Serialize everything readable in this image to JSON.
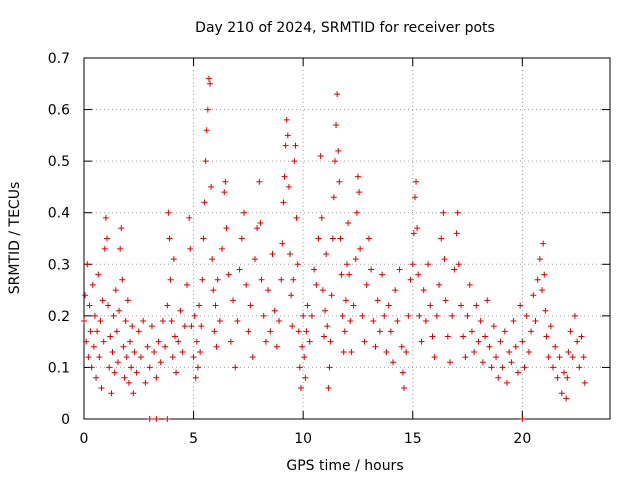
{
  "chart_data": {
    "type": "scatter",
    "title": "Day 210 of 2024, SRMTID for receiver pots",
    "xlabel": "GPS time / hours",
    "ylabel": "SRMTID / TECUs",
    "xlim": [
      0,
      24
    ],
    "ylim": [
      0,
      0.7
    ],
    "grid": true,
    "marker": "plus",
    "x_ticks": [
      0,
      5,
      10,
      15,
      20
    ],
    "x_tick_labels": [
      "0",
      "5",
      "10",
      "15",
      "20"
    ],
    "y_ticks": [
      0,
      0.1,
      0.2,
      0.3,
      0.4,
      0.5,
      0.6,
      0.7
    ],
    "y_tick_labels": [
      "0",
      "0.1",
      "0.2",
      "0.3",
      "0.4",
      "0.5",
      "0.6",
      "0.7"
    ],
    "colors": {
      "series": "#dd0000",
      "grid": "#a0a0a0",
      "axis": "#000000"
    },
    "series": [
      {
        "name": "SRMTID",
        "points": [
          [
            0.0,
            0.19
          ],
          [
            0.05,
            0.24
          ],
          [
            0.1,
            0.15
          ],
          [
            0.15,
            0.3
          ],
          [
            0.2,
            0.12
          ],
          [
            0.25,
            0.22
          ],
          [
            0.3,
            0.17
          ],
          [
            0.35,
            0.1
          ],
          [
            0.4,
            0.26
          ],
          [
            0.45,
            0.14
          ],
          [
            0.5,
            0.2
          ],
          [
            0.55,
            0.08
          ],
          [
            0.6,
            0.17
          ],
          [
            0.65,
            0.28
          ],
          [
            0.7,
            0.12
          ],
          [
            0.75,
            0.19
          ],
          [
            0.8,
            0.06
          ],
          [
            0.85,
            0.23
          ],
          [
            0.9,
            0.15
          ],
          [
            0.95,
            0.33
          ],
          [
            1.0,
            0.39
          ],
          [
            1.05,
            0.35
          ],
          [
            1.1,
            0.22
          ],
          [
            1.15,
            0.1
          ],
          [
            1.2,
            0.16
          ],
          [
            1.25,
            0.05
          ],
          [
            1.3,
            0.13
          ],
          [
            1.35,
            0.2
          ],
          [
            1.4,
            0.09
          ],
          [
            1.45,
            0.25
          ],
          [
            1.5,
            0.17
          ],
          [
            1.55,
            0.11
          ],
          [
            1.6,
            0.21
          ],
          [
            1.65,
            0.33
          ],
          [
            1.7,
            0.37
          ],
          [
            1.75,
            0.27
          ],
          [
            1.8,
            0.14
          ],
          [
            1.85,
            0.08
          ],
          [
            1.9,
            0.19
          ],
          [
            1.95,
            0.12
          ],
          [
            2.0,
            0.23
          ],
          [
            2.05,
            0.07
          ],
          [
            2.1,
            0.15
          ],
          [
            2.15,
            0.1
          ],
          [
            2.2,
            0.18
          ],
          [
            2.25,
            0.05
          ],
          [
            2.3,
            0.13
          ],
          [
            2.4,
            0.09
          ],
          [
            2.5,
            0.17
          ],
          [
            2.6,
            0.12
          ],
          [
            2.7,
            0.19
          ],
          [
            2.8,
            0.07
          ],
          [
            2.9,
            0.14
          ],
          [
            3.0,
            0.1
          ],
          [
            3.1,
            0.18
          ],
          [
            3.2,
            0.13
          ],
          [
            3.3,
            0.08
          ],
          [
            3.4,
            0.15
          ],
          [
            3.5,
            0.11
          ],
          [
            3.6,
            0.19
          ],
          [
            3.7,
            0.14
          ],
          [
            3.8,
            0.22
          ],
          [
            3.85,
            0.4
          ],
          [
            3.9,
            0.35
          ],
          [
            3.95,
            0.27
          ],
          [
            4.0,
            0.19
          ],
          [
            4.05,
            0.12
          ],
          [
            4.1,
            0.31
          ],
          [
            4.15,
            0.16
          ],
          [
            4.2,
            0.09
          ],
          [
            4.3,
            0.15
          ],
          [
            4.4,
            0.21
          ],
          [
            4.5,
            0.13
          ],
          [
            4.6,
            0.18
          ],
          [
            4.7,
            0.26
          ],
          [
            4.8,
            0.39
          ],
          [
            4.85,
            0.33
          ],
          [
            4.9,
            0.18
          ],
          [
            5.0,
            0.12
          ],
          [
            5.05,
            0.2
          ],
          [
            5.1,
            0.08
          ],
          [
            5.15,
            0.15
          ],
          [
            5.2,
            0.1
          ],
          [
            5.25,
            0.22
          ],
          [
            5.3,
            0.13
          ],
          [
            5.35,
            0.18
          ],
          [
            5.4,
            0.27
          ],
          [
            5.45,
            0.35
          ],
          [
            5.5,
            0.42
          ],
          [
            5.55,
            0.5
          ],
          [
            5.6,
            0.56
          ],
          [
            5.65,
            0.6
          ],
          [
            5.7,
            0.66
          ],
          [
            5.75,
            0.65
          ],
          [
            5.8,
            0.45
          ],
          [
            5.85,
            0.31
          ],
          [
            5.9,
            0.25
          ],
          [
            5.95,
            0.17
          ],
          [
            6.0,
            0.22
          ],
          [
            6.05,
            0.14
          ],
          [
            6.1,
            0.27
          ],
          [
            6.2,
            0.19
          ],
          [
            6.3,
            0.33
          ],
          [
            6.4,
            0.44
          ],
          [
            6.45,
            0.46
          ],
          [
            6.5,
            0.37
          ],
          [
            6.6,
            0.28
          ],
          [
            6.7,
            0.15
          ],
          [
            6.8,
            0.23
          ],
          [
            6.9,
            0.1
          ],
          [
            7.0,
            0.19
          ],
          [
            7.1,
            0.29
          ],
          [
            7.2,
            0.35
          ],
          [
            7.3,
            0.4
          ],
          [
            7.4,
            0.26
          ],
          [
            7.5,
            0.17
          ],
          [
            7.6,
            0.22
          ],
          [
            7.7,
            0.12
          ],
          [
            7.8,
            0.31
          ],
          [
            7.9,
            0.37
          ],
          [
            8.0,
            0.46
          ],
          [
            8.05,
            0.38
          ],
          [
            8.1,
            0.27
          ],
          [
            8.2,
            0.2
          ],
          [
            8.3,
            0.15
          ],
          [
            8.4,
            0.25
          ],
          [
            8.5,
            0.17
          ],
          [
            8.6,
            0.32
          ],
          [
            8.7,
            0.21
          ],
          [
            8.8,
            0.14
          ],
          [
            8.9,
            0.19
          ],
          [
            9.0,
            0.27
          ],
          [
            9.05,
            0.34
          ],
          [
            9.1,
            0.42
          ],
          [
            9.15,
            0.47
          ],
          [
            9.2,
            0.53
          ],
          [
            9.25,
            0.58
          ],
          [
            9.3,
            0.55
          ],
          [
            9.35,
            0.45
          ],
          [
            9.4,
            0.32
          ],
          [
            9.45,
            0.24
          ],
          [
            9.5,
            0.18
          ],
          [
            9.55,
            0.27
          ],
          [
            9.6,
            0.5
          ],
          [
            9.65,
            0.53
          ],
          [
            9.7,
            0.39
          ],
          [
            9.75,
            0.3
          ],
          [
            9.8,
            0.17
          ],
          [
            9.85,
            0.1
          ],
          [
            9.9,
            0.06
          ],
          [
            9.95,
            0.14
          ],
          [
            10.0,
            0.2
          ],
          [
            10.05,
            0.12
          ],
          [
            10.1,
            0.08
          ],
          [
            10.15,
            0.17
          ],
          [
            10.2,
            0.22
          ],
          [
            10.3,
            0.15
          ],
          [
            10.4,
            0.2
          ],
          [
            10.5,
            0.29
          ],
          [
            10.6,
            0.26
          ],
          [
            10.7,
            0.35
          ],
          [
            10.8,
            0.51
          ],
          [
            10.85,
            0.39
          ],
          [
            10.9,
            0.25
          ],
          [
            10.95,
            0.16
          ],
          [
            11.0,
            0.21
          ],
          [
            11.05,
            0.32
          ],
          [
            11.1,
            0.18
          ],
          [
            11.15,
            0.06
          ],
          [
            11.2,
            0.1
          ],
          [
            11.25,
            0.15
          ],
          [
            11.3,
            0.24
          ],
          [
            11.35,
            0.35
          ],
          [
            11.4,
            0.43
          ],
          [
            11.45,
            0.5
          ],
          [
            11.5,
            0.57
          ],
          [
            11.55,
            0.63
          ],
          [
            11.6,
            0.52
          ],
          [
            11.65,
            0.46
          ],
          [
            11.7,
            0.35
          ],
          [
            11.75,
            0.28
          ],
          [
            11.8,
            0.2
          ],
          [
            11.85,
            0.13
          ],
          [
            11.9,
            0.17
          ],
          [
            11.95,
            0.23
          ],
          [
            12.0,
            0.3
          ],
          [
            12.05,
            0.38
          ],
          [
            12.1,
            0.28
          ],
          [
            12.15,
            0.19
          ],
          [
            12.2,
            0.13
          ],
          [
            12.3,
            0.22
          ],
          [
            12.4,
            0.31
          ],
          [
            12.45,
            0.4
          ],
          [
            12.5,
            0.47
          ],
          [
            12.55,
            0.44
          ],
          [
            12.6,
            0.33
          ],
          [
            12.7,
            0.2
          ],
          [
            12.8,
            0.15
          ],
          [
            12.9,
            0.26
          ],
          [
            13.0,
            0.35
          ],
          [
            13.1,
            0.29
          ],
          [
            13.2,
            0.19
          ],
          [
            13.3,
            0.14
          ],
          [
            13.4,
            0.23
          ],
          [
            13.5,
            0.17
          ],
          [
            13.6,
            0.28
          ],
          [
            13.7,
            0.2
          ],
          [
            13.8,
            0.13
          ],
          [
            13.9,
            0.22
          ],
          [
            14.0,
            0.17
          ],
          [
            14.1,
            0.11
          ],
          [
            14.2,
            0.25
          ],
          [
            14.3,
            0.19
          ],
          [
            14.4,
            0.29
          ],
          [
            14.5,
            0.14
          ],
          [
            14.55,
            0.09
          ],
          [
            14.6,
            0.06
          ],
          [
            14.7,
            0.13
          ],
          [
            14.8,
            0.2
          ],
          [
            14.9,
            0.27
          ],
          [
            15.0,
            0.3
          ],
          [
            15.05,
            0.36
          ],
          [
            15.1,
            0.43
          ],
          [
            15.15,
            0.46
          ],
          [
            15.2,
            0.37
          ],
          [
            15.25,
            0.28
          ],
          [
            15.3,
            0.2
          ],
          [
            15.4,
            0.15
          ],
          [
            15.5,
            0.25
          ],
          [
            15.6,
            0.19
          ],
          [
            15.7,
            0.3
          ],
          [
            15.8,
            0.22
          ],
          [
            15.9,
            0.16
          ],
          [
            16.0,
            0.12
          ],
          [
            16.1,
            0.2
          ],
          [
            16.2,
            0.26
          ],
          [
            16.3,
            0.35
          ],
          [
            16.4,
            0.4
          ],
          [
            16.45,
            0.31
          ],
          [
            16.5,
            0.23
          ],
          [
            16.6,
            0.16
          ],
          [
            16.7,
            0.11
          ],
          [
            16.8,
            0.2
          ],
          [
            16.9,
            0.29
          ],
          [
            17.0,
            0.36
          ],
          [
            17.05,
            0.4
          ],
          [
            17.1,
            0.3
          ],
          [
            17.2,
            0.22
          ],
          [
            17.3,
            0.16
          ],
          [
            17.4,
            0.12
          ],
          [
            17.5,
            0.2
          ],
          [
            17.6,
            0.26
          ],
          [
            17.7,
            0.17
          ],
          [
            17.8,
            0.13
          ],
          [
            17.9,
            0.22
          ],
          [
            18.0,
            0.15
          ],
          [
            18.1,
            0.19
          ],
          [
            18.2,
            0.11
          ],
          [
            18.3,
            0.16
          ],
          [
            18.4,
            0.23
          ],
          [
            18.5,
            0.14
          ],
          [
            18.6,
            0.1
          ],
          [
            18.7,
            0.18
          ],
          [
            18.8,
            0.12
          ],
          [
            18.9,
            0.08
          ],
          [
            19.0,
            0.15
          ],
          [
            19.1,
            0.1
          ],
          [
            19.2,
            0.17
          ],
          [
            19.3,
            0.07
          ],
          [
            19.4,
            0.13
          ],
          [
            19.5,
            0.11
          ],
          [
            19.6,
            0.19
          ],
          [
            19.7,
            0.14
          ],
          [
            19.8,
            0.09
          ],
          [
            19.9,
            0.22
          ],
          [
            20.0,
            0.15
          ],
          [
            20.1,
            0.1
          ],
          [
            20.2,
            0.2
          ],
          [
            20.3,
            0.13
          ],
          [
            20.4,
            0.17
          ],
          [
            20.5,
            0.24
          ],
          [
            20.6,
            0.19
          ],
          [
            20.7,
            0.27
          ],
          [
            20.8,
            0.31
          ],
          [
            20.9,
            0.25
          ],
          [
            20.95,
            0.34
          ],
          [
            21.0,
            0.28
          ],
          [
            21.05,
            0.21
          ],
          [
            21.1,
            0.16
          ],
          [
            21.2,
            0.12
          ],
          [
            21.3,
            0.18
          ],
          [
            21.4,
            0.1
          ],
          [
            21.5,
            0.14
          ],
          [
            21.6,
            0.08
          ],
          [
            21.7,
            0.12
          ],
          [
            21.8,
            0.05
          ],
          [
            21.9,
            0.09
          ],
          [
            22.0,
            0.04
          ],
          [
            22.05,
            0.08
          ],
          [
            22.1,
            0.13
          ],
          [
            22.2,
            0.17
          ],
          [
            22.3,
            0.12
          ],
          [
            22.4,
            0.2
          ],
          [
            22.5,
            0.15
          ],
          [
            22.6,
            0.1
          ],
          [
            22.7,
            0.16
          ],
          [
            22.8,
            0.12
          ],
          [
            22.85,
            0.07
          ],
          [
            3.0,
            0.0
          ],
          [
            3.3,
            0.0
          ],
          [
            3.8,
            0.0
          ],
          [
            20.0,
            0.0
          ]
        ]
      }
    ]
  }
}
